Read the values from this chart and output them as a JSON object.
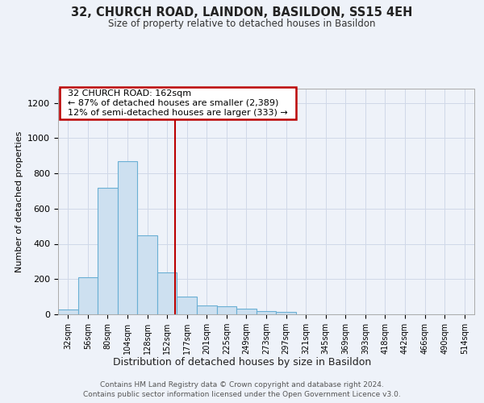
{
  "title1": "32, CHURCH ROAD, LAINDON, BASILDON, SS15 4EH",
  "title2": "Size of property relative to detached houses in Basildon",
  "xlabel": "Distribution of detached houses by size in Basildon",
  "ylabel": "Number of detached properties",
  "bar_labels": [
    "32sqm",
    "56sqm",
    "80sqm",
    "104sqm",
    "128sqm",
    "152sqm",
    "177sqm",
    "201sqm",
    "225sqm",
    "249sqm",
    "273sqm",
    "297sqm",
    "321sqm",
    "345sqm",
    "369sqm",
    "393sqm",
    "418sqm",
    "442sqm",
    "466sqm",
    "490sqm",
    "514sqm"
  ],
  "bar_heights": [
    28,
    210,
    720,
    870,
    450,
    240,
    100,
    50,
    45,
    30,
    18,
    12,
    0,
    0,
    0,
    0,
    0,
    0,
    0,
    0,
    0
  ],
  "bar_color": "#cde0f0",
  "bar_edge_color": "#6aafd4",
  "vline_color": "#bb0000",
  "annotation_text": "  32 CHURCH ROAD: 162sqm  \n  ← 87% of detached houses are smaller (2,389)  \n  12% of semi-detached houses are larger (333) →  ",
  "annotation_box_color": "#ffffff",
  "annotation_box_edge": "#bb0000",
  "ylim": [
    0,
    1280
  ],
  "yticks": [
    0,
    200,
    400,
    600,
    800,
    1000,
    1200
  ],
  "footer1": "Contains HM Land Registry data © Crown copyright and database right 2024.",
  "footer2": "Contains public sector information licensed under the Open Government Licence v3.0.",
  "background_color": "#eef2f9",
  "plot_bg_color": "#eef2f9",
  "grid_color": "#d0d8e8"
}
